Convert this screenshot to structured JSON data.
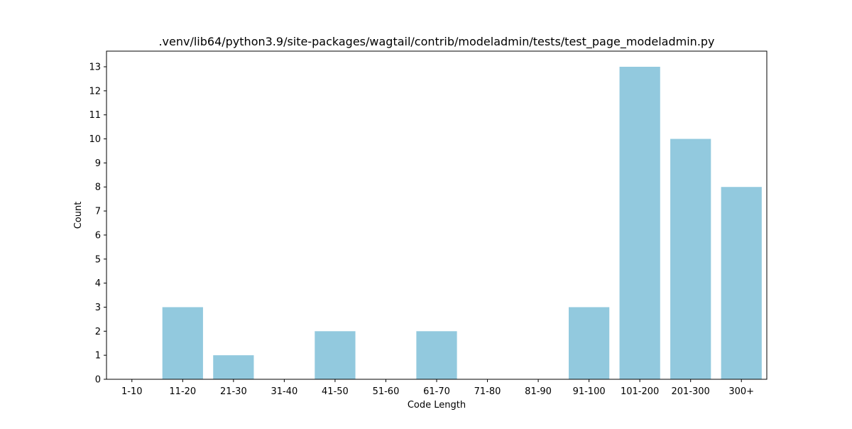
{
  "chart_data": {
    "type": "bar",
    "title": ".venv/lib64/python3.9/site-packages/wagtail/contrib/modeladmin/tests/test_page_modeladmin.py",
    "xlabel": "Code Length",
    "ylabel": "Count",
    "categories": [
      "1-10",
      "11-20",
      "21-30",
      "31-40",
      "41-50",
      "51-60",
      "61-70",
      "71-80",
      "81-90",
      "91-100",
      "101-200",
      "201-300",
      "300+"
    ],
    "values": [
      0,
      3,
      1,
      0,
      2,
      0,
      2,
      0,
      0,
      3,
      13,
      10,
      8
    ],
    "ylim": [
      0,
      13.65
    ],
    "yticks": [
      0,
      1,
      2,
      3,
      4,
      5,
      6,
      7,
      8,
      9,
      10,
      11,
      12,
      13
    ],
    "grid": false,
    "legend": "none",
    "colors": {
      "bar": "#92c9de",
      "axis": "#000000",
      "background": "#ffffff"
    }
  }
}
